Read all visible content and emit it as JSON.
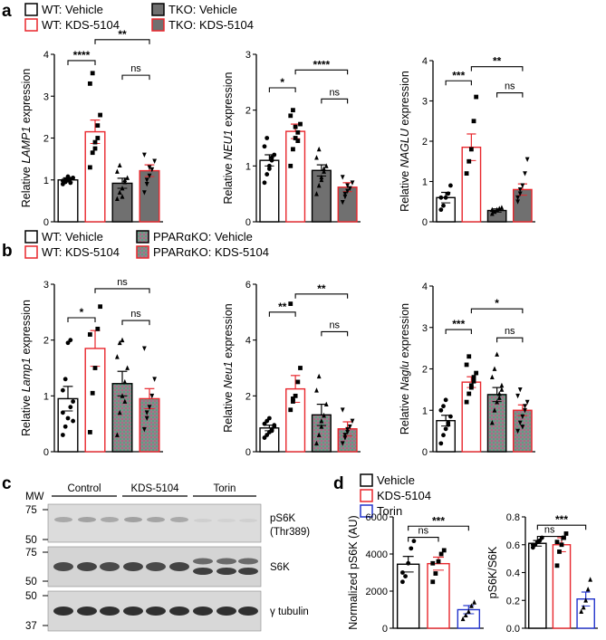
{
  "panel_letters": {
    "a": "a",
    "b": "b",
    "c": "c",
    "d": "d"
  },
  "legend_a": [
    {
      "label": "WT: Vehicle",
      "edge": "#000000",
      "fill": "#ffffff"
    },
    {
      "label": "WT: KDS-5104",
      "edge": "#e8262c",
      "fill": "#ffffff"
    },
    {
      "label": "TKO: Vehicle",
      "edge": "#000000",
      "fill": "#707070"
    },
    {
      "label": "TKO: KDS-5104",
      "edge": "#e8262c",
      "fill": "#707070"
    }
  ],
  "legend_b": [
    {
      "label": "WT: Vehicle",
      "edge": "#000000",
      "fill": "#ffffff"
    },
    {
      "label": "WT: KDS-5104",
      "edge": "#e8262c",
      "fill": "#ffffff"
    },
    {
      "label": "PPARαKO: Vehicle",
      "edge": "#000000",
      "fill": "#8a8a8a"
    },
    {
      "label": "PPARαKO: KDS-5104",
      "edge": "#e8262c",
      "fill": "#8a8a8a"
    }
  ],
  "legend_d": [
    {
      "label": "Vehicle",
      "edge": "#000000",
      "fill": "#ffffff"
    },
    {
      "label": "KDS-5104",
      "edge": "#e8262c",
      "fill": "#ffffff"
    },
    {
      "label": "Torin",
      "edge": "#2233cc",
      "fill": "#ffffff"
    }
  ],
  "blot": {
    "mw_label": "MW",
    "groups": [
      "Control",
      "KDS-5104",
      "Torin"
    ],
    "strips": [
      {
        "label": "pS6K",
        "label2": "(Thr389)",
        "markers": [
          "75",
          "50"
        ]
      },
      {
        "label": "S6K",
        "label2": "",
        "markers": [
          "75",
          "50"
        ]
      },
      {
        "label": "γ tubulin",
        "label2": "",
        "markers": [
          "50",
          "37"
        ]
      }
    ]
  },
  "chart_data": [
    {
      "type": "bar",
      "panel": "a",
      "ylabel_pre": "Relative ",
      "ylabel_gene": "LAMP1",
      "ylabel_post": " expression",
      "ylim": [
        0,
        4
      ],
      "yticks": [
        "0",
        "1",
        "2",
        "3",
        "4"
      ],
      "values": [
        1.0,
        2.15,
        0.92,
        1.22
      ],
      "errors": [
        0.05,
        0.28,
        0.12,
        0.14
      ],
      "points": [
        [
          0.9,
          0.95,
          1.0,
          1.02,
          1.05,
          0.98,
          1.0,
          1.08,
          0.93
        ],
        [
          1.3,
          1.65,
          1.9,
          2.3,
          2.55,
          3.3,
          3.55,
          1.75,
          2.0
        ],
        [
          0.55,
          0.7,
          0.8,
          0.95,
          1.05,
          1.2,
          1.35,
          0.6,
          1.0
        ],
        [
          0.7,
          0.9,
          1.1,
          1.25,
          1.45,
          1.6,
          1.0,
          1.3
        ]
      ],
      "brackets": [
        {
          "from": 0,
          "to": 1,
          "y": 3.85,
          "label": "****"
        },
        {
          "from": 1,
          "to": 3,
          "y": 4.35,
          "label": "**"
        },
        {
          "from": 2,
          "to": 3,
          "y": 3.5,
          "label": "ns"
        }
      ]
    },
    {
      "type": "bar",
      "panel": "a",
      "ylabel_pre": "Relative ",
      "ylabel_gene": "NEU1",
      "ylabel_post": " expression",
      "ylim": [
        0,
        3
      ],
      "yticks": [
        "0",
        "1",
        "2",
        "3"
      ],
      "values": [
        1.1,
        1.62,
        0.92,
        0.62
      ],
      "errors": [
        0.1,
        0.13,
        0.1,
        0.08
      ],
      "points": [
        [
          0.7,
          0.85,
          1.0,
          1.1,
          1.2,
          1.35,
          1.5,
          0.95,
          1.15
        ],
        [
          1.0,
          1.3,
          1.5,
          1.6,
          1.75,
          1.9,
          2.0,
          1.7,
          1.45
        ],
        [
          0.5,
          0.65,
          0.8,
          0.9,
          1.0,
          1.15,
          1.3,
          0.75,
          0.95
        ],
        [
          0.35,
          0.45,
          0.55,
          0.6,
          0.7,
          0.8,
          0.5,
          0.65
        ]
      ],
      "brackets": [
        {
          "from": 0,
          "to": 1,
          "y": 2.4,
          "label": "*"
        },
        {
          "from": 1,
          "to": 3,
          "y": 2.72,
          "label": "****"
        },
        {
          "from": 2,
          "to": 3,
          "y": 2.2,
          "label": "ns"
        }
      ]
    },
    {
      "type": "bar",
      "panel": "a",
      "ylabel_pre": "Relative ",
      "ylabel_gene": "NAGLU",
      "ylabel_post": " expression",
      "ylim": [
        0,
        4
      ],
      "yticks": [
        "0",
        "1",
        "2",
        "3",
        "4"
      ],
      "values": [
        0.6,
        1.85,
        0.28,
        0.8
      ],
      "errors": [
        0.13,
        0.33,
        0.04,
        0.14
      ],
      "points": [
        [
          0.3,
          0.4,
          0.6,
          0.7,
          0.9,
          0.6
        ],
        [
          1.2,
          1.5,
          1.8,
          2.5,
          3.1
        ],
        [
          0.2,
          0.25,
          0.3,
          0.33,
          0.35,
          0.3
        ],
        [
          0.5,
          0.7,
          0.9,
          1.2,
          1.55,
          0.6,
          0.8
        ]
      ],
      "brackets": [
        {
          "from": 0,
          "to": 1,
          "y": 3.5,
          "label": "***"
        },
        {
          "from": 1,
          "to": 3,
          "y": 3.85,
          "label": "**"
        },
        {
          "from": 2,
          "to": 3,
          "y": 3.2,
          "label": "ns"
        }
      ]
    },
    {
      "type": "bar",
      "panel": "b",
      "ylabel_pre": "Relative ",
      "ylabel_gene": "Lamp1",
      "ylabel_post": " expression",
      "ylim": [
        0,
        3
      ],
      "yticks": [
        "0",
        "1",
        "2",
        "3"
      ],
      "values": [
        0.95,
        1.85,
        1.22,
        0.95
      ],
      "errors": [
        0.22,
        0.32,
        0.22,
        0.18
      ],
      "points": [
        [
          0.3,
          0.45,
          0.6,
          0.8,
          0.9,
          1.1,
          1.3,
          1.95,
          2.0,
          0.55,
          0.7
        ],
        [
          0.35,
          1.05,
          1.5,
          2.2,
          2.6,
          2.1
        ],
        [
          0.3,
          0.7,
          1.0,
          1.25,
          1.5,
          1.7,
          1.95,
          2.0,
          0.9
        ],
        [
          0.4,
          0.6,
          0.8,
          1.0,
          1.3,
          1.85,
          0.7
        ]
      ],
      "brackets": [
        {
          "from": 0,
          "to": 1,
          "y": 2.4,
          "label": "*"
        },
        {
          "from": 1,
          "to": 3,
          "y": 2.92,
          "label": "ns"
        },
        {
          "from": 2,
          "to": 3,
          "y": 2.35,
          "label": "ns"
        }
      ]
    },
    {
      "type": "bar",
      "panel": "b",
      "ylabel_pre": "Relative ",
      "ylabel_gene": "Neu1",
      "ylabel_post": " expression",
      "ylim": [
        0,
        6
      ],
      "yticks": [
        "0",
        "2",
        "4",
        "6"
      ],
      "values": [
        0.85,
        2.25,
        1.32,
        0.82
      ],
      "errors": [
        0.1,
        0.48,
        0.38,
        0.25
      ],
      "points": [
        [
          0.5,
          0.6,
          0.7,
          0.8,
          0.9,
          1.0,
          1.1,
          1.2,
          0.75,
          0.95
        ],
        [
          1.5,
          1.8,
          2.0,
          2.5,
          3.0,
          5.3,
          1.9
        ],
        [
          0.3,
          0.6,
          0.9,
          1.3,
          1.7,
          2.2,
          2.7,
          1.1
        ],
        [
          0.3,
          0.5,
          0.7,
          0.9,
          1.1,
          1.5,
          0.6,
          0.8
        ]
      ],
      "brackets": [
        {
          "from": 0,
          "to": 1,
          "y": 5.0,
          "label": "**"
        },
        {
          "from": 1,
          "to": 3,
          "y": 5.65,
          "label": "**"
        },
        {
          "from": 2,
          "to": 3,
          "y": 4.3,
          "label": "ns"
        }
      ]
    },
    {
      "type": "bar",
      "panel": "b",
      "ylabel_pre": "Relative ",
      "ylabel_gene": "Naglu",
      "ylabel_post": " expression",
      "ylim": [
        0,
        4
      ],
      "yticks": [
        "0",
        "1",
        "2",
        "3",
        "4"
      ],
      "values": [
        0.75,
        1.68,
        1.38,
        1.0
      ],
      "errors": [
        0.13,
        0.13,
        0.17,
        0.13
      ],
      "points": [
        [
          0.2,
          0.4,
          0.55,
          0.7,
          0.85,
          1.0,
          1.1,
          1.25,
          0.65
        ],
        [
          1.2,
          1.4,
          1.55,
          1.7,
          1.9,
          2.1,
          2.3,
          1.6,
          1.8
        ],
        [
          0.7,
          1.0,
          1.2,
          1.4,
          1.6,
          1.8,
          2.0,
          2.35,
          1.3,
          1.5
        ],
        [
          0.5,
          0.7,
          0.85,
          1.0,
          1.2,
          1.35,
          1.5,
          0.6,
          1.1
        ]
      ],
      "brackets": [
        {
          "from": 0,
          "to": 1,
          "y": 2.95,
          "label": "***"
        },
        {
          "from": 1,
          "to": 3,
          "y": 3.45,
          "label": "*"
        },
        {
          "from": 2,
          "to": 3,
          "y": 2.75,
          "label": "ns"
        }
      ]
    },
    {
      "type": "bar",
      "panel": "d",
      "ylabel_pre": "Normalized pS6K (AU)",
      "ylabel_gene": "",
      "ylabel_post": "",
      "ylim": [
        0,
        6000
      ],
      "yticks": [
        "0",
        "2000",
        "4000",
        "6000"
      ],
      "values": [
        3450,
        3480,
        1000
      ],
      "errors": [
        420,
        350,
        220
      ],
      "points": [
        [
          2500,
          2800,
          3500,
          4300,
          4700,
          3000
        ],
        [
          2500,
          2950,
          3600,
          4000,
          4200,
          3500
        ],
        [
          500,
          700,
          900,
          1200,
          1400
        ]
      ],
      "brackets": [
        {
          "from": 0,
          "to": 1,
          "y": 4900,
          "label": "ns"
        },
        {
          "from": 0,
          "to": 2,
          "y": 5500,
          "label": "***"
        }
      ]
    },
    {
      "type": "bar",
      "panel": "d",
      "ylabel_pre": "pS6K/S6K",
      "ylabel_gene": "",
      "ylabel_post": "",
      "ylim": [
        0,
        0.8
      ],
      "yticks": [
        "0.0",
        "0.2",
        "0.4",
        "0.6",
        "0.8"
      ],
      "values": [
        0.61,
        0.6,
        0.21
      ],
      "errors": [
        0.02,
        0.05,
        0.05
      ],
      "points": [
        [
          0.58,
          0.6,
          0.62,
          0.63,
          0.65,
          0.6
        ],
        [
          0.45,
          0.55,
          0.6,
          0.65,
          0.68,
          0.62
        ],
        [
          0.12,
          0.15,
          0.2,
          0.28,
          0.35
        ]
      ],
      "brackets": [
        {
          "from": 0,
          "to": 1,
          "y": 0.66,
          "label": "ns"
        },
        {
          "from": 0,
          "to": 2,
          "y": 0.74,
          "label": "***"
        }
      ]
    }
  ]
}
